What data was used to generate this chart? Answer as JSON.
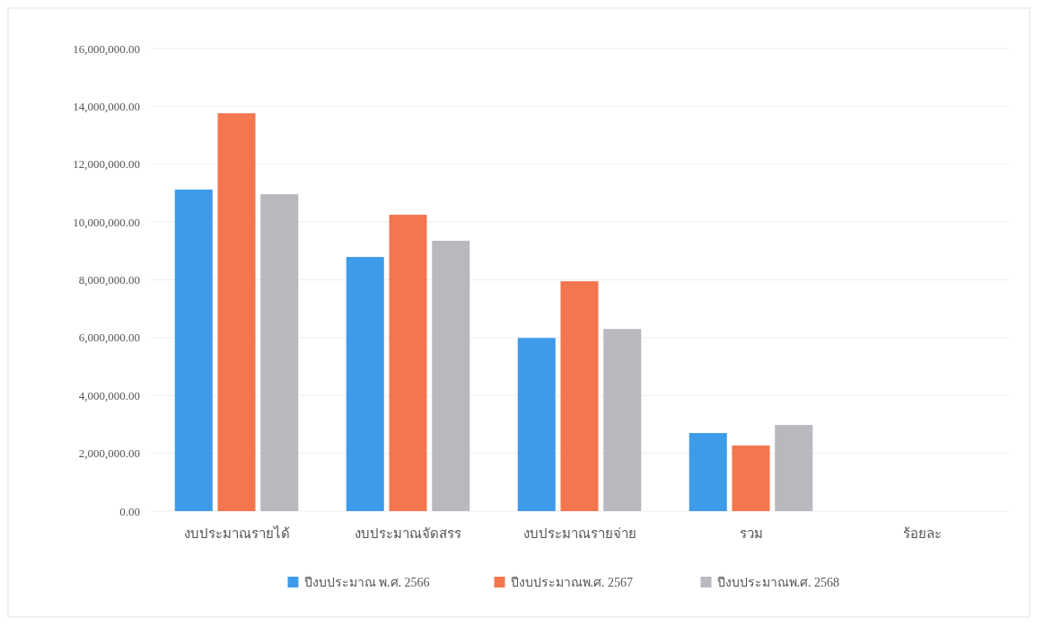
{
  "chart_data": {
    "type": "bar",
    "categories": [
      "งบประมาณรายได้",
      "งบประมาณจัดสรร",
      "งบประมาณรายจ่าย",
      "รวม",
      "ร้อยละ"
    ],
    "series": [
      {
        "name": "ปีงบประมาณ พ.ศ. 2566",
        "color": "#3d9be9",
        "values": [
          11120000,
          8790000,
          5990000,
          2700000,
          null
        ]
      },
      {
        "name": "ปีงบประมาณพ.ศ. 2567",
        "color": "#f4764f",
        "values": [
          13760000,
          10250000,
          7950000,
          2270000,
          null
        ]
      },
      {
        "name": "ปีงบประมาณพ.ศ. 2568",
        "color": "#b8b8bf",
        "values": [
          10960000,
          9350000,
          6300000,
          2980000,
          null
        ]
      }
    ],
    "ylim": [
      0,
      16000000
    ],
    "yticks": [
      {
        "value": 0,
        "label": "0.00"
      },
      {
        "value": 2000000,
        "label": "2,000,000.00"
      },
      {
        "value": 4000000,
        "label": "4,000,000.00"
      },
      {
        "value": 6000000,
        "label": "6,000,000.00"
      },
      {
        "value": 8000000,
        "label": "8,000,000.00"
      },
      {
        "value": 10000000,
        "label": "10,000,000.00"
      },
      {
        "value": 12000000,
        "label": "12,000,000.00"
      },
      {
        "value": 14000000,
        "label": "14,000,000.00"
      },
      {
        "value": 16000000,
        "label": "16,000,000.00"
      }
    ],
    "grid": "y",
    "legend": "bottom"
  }
}
